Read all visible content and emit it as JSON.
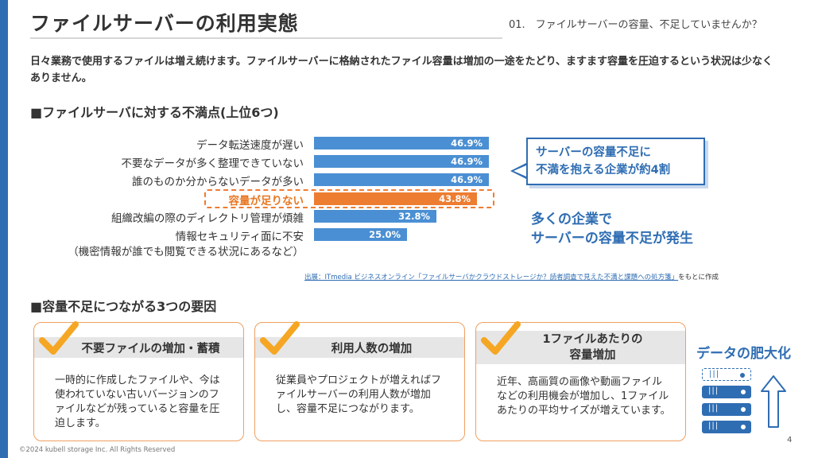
{
  "header": {
    "title": "ファイルサーバーの利用実態",
    "section": "01.　ファイルサーバーの容量、不足していませんか？"
  },
  "intro": "日々業務で使用するファイルは増え続けます。ファイルサーバーに格納されたファイル容量は増加の一途をたどり、ますます容量を圧迫するという状況は少なくありません。",
  "dissatisfaction": {
    "heading": "■ファイルサーバに対する不満点(上位6つ)",
    "items": [
      {
        "label": "データ転送速度が遅い",
        "value": 46.9,
        "value_label": "46.9%"
      },
      {
        "label": "不要なデータが多く整理できていない",
        "value": 46.9,
        "value_label": "46.9%"
      },
      {
        "label": "誰のものか分からないデータが多い",
        "value": 46.9,
        "value_label": "46.9%"
      },
      {
        "label": "容量が足りない",
        "value": 43.8,
        "value_label": "43.8%"
      },
      {
        "label": "組織改編の際のディレクトリ管理が煩雑",
        "value": 32.8,
        "value_label": "32.8%"
      },
      {
        "label": "情報セキュリティ面に不安",
        "label_line2": "（機密情報が誰でも閲覧できる状況にあるなど）",
        "value": 25.0,
        "value_label": "25.0%"
      }
    ],
    "highlight_index": 3,
    "colors": {
      "bar": "#4a8fd3",
      "highlight": "#ed7d31"
    }
  },
  "callout": {
    "line1": "サーバーの容量不足に",
    "line2": "不満を抱える企業が約4割"
  },
  "emphasis": {
    "line1": "多くの企業で",
    "line2": "サーバーの容量不足が発生"
  },
  "source": {
    "prefix": "出展：ITmedia ビジネスオンライン「ファイルサーバかクラウドストレージか？読者調査で見えた不満と課題への処方箋」",
    "suffix": "をもとに作成"
  },
  "causes": {
    "heading": "■容量不足につながる3つの要因",
    "cards": [
      {
        "title": "不要ファイルの増加・蓄積",
        "body": "一時的に作成したファイルや、今は使われていない古いバージョンのファイルなどが残っていると容量を圧迫します。"
      },
      {
        "title": "利用人数の増加",
        "body": "従業員やプロジェクトが増えればファイルサーバーの利用人数が増加し、容量不足につながります。"
      },
      {
        "title_line1": "1ファイルあたりの",
        "title_line2": "容量増加",
        "body": "近年、高画質の画像や動画ファイルなどの利用機会が増加し、1ファイルあたりの平均サイズが増えています。"
      }
    ]
  },
  "growth": {
    "label": "データの肥大化",
    "icons": [
      "server-stack-icon",
      "up-arrow-icon"
    ]
  },
  "footer": {
    "page_number": "4",
    "copyright": "©2024 kubell storage Inc. All Rights Reserved"
  }
}
